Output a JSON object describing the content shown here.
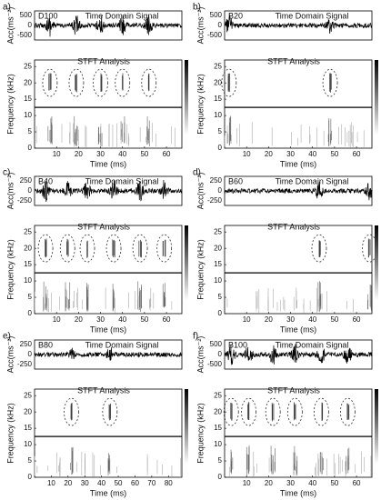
{
  "panels": [
    {
      "label": "a)",
      "signal_name": "D100",
      "signal_title": "Time Domain Signal",
      "signal_ylabel": "Acc(ms⁻²)",
      "signal_yticks": [
        "500",
        "0",
        "-500"
      ],
      "stft_title": "STFT Analysis",
      "stft_ylabel": "Frequency (kHz)",
      "stft_yticks": [
        "25",
        "20",
        "15",
        "10",
        "5",
        "0"
      ],
      "xticks": [
        "10",
        "20",
        "30",
        "40",
        "50",
        "60"
      ],
      "xlabel": "Time (ms)"
    },
    {
      "label": "b)",
      "signal_name": "B20",
      "signal_title": "Time Domain Signal",
      "signal_ylabel": "Acc(ms⁻²)",
      "signal_yticks": [
        "500",
        "0",
        "-500"
      ],
      "stft_title": "STFT Analysis",
      "stft_ylabel": "Frequency (kHz)",
      "stft_yticks": [
        "25",
        "20",
        "15",
        "10",
        "5",
        "0"
      ],
      "xticks": [
        "10",
        "20",
        "30",
        "40",
        "50",
        "60"
      ],
      "xlabel": "Time (ms)"
    },
    {
      "label": "c)",
      "signal_name": "B40",
      "signal_title": "Time Domain Signal",
      "signal_ylabel": "Acc(ms⁻²)",
      "signal_yticks": [
        "250",
        "0",
        "-250"
      ],
      "stft_title": "STFT Analysis",
      "stft_ylabel": "Frequency (kHz)",
      "stft_yticks": [
        "25",
        "20",
        "15",
        "10",
        "5",
        "0"
      ],
      "xticks": [
        "10",
        "20",
        "30",
        "40",
        "50",
        "60"
      ],
      "xlabel": "Time (ms)"
    },
    {
      "label": "d)",
      "signal_name": "B60",
      "signal_title": "Time Domain Signal",
      "signal_ylabel": "Acc(ms⁻²)",
      "signal_yticks": [
        "250",
        "0",
        "-250"
      ],
      "stft_title": "STFT Analysis",
      "stft_ylabel": "Frequency (kHz)",
      "stft_yticks": [
        "25",
        "20",
        "15",
        "10",
        "5",
        "0"
      ],
      "xticks": [
        "10",
        "20",
        "30",
        "40",
        "50",
        "60"
      ],
      "xlabel": "Time (ms)"
    },
    {
      "label": "e)",
      "signal_name": "B80",
      "signal_title": "Time Domain Signal",
      "signal_ylabel": "Acc(ms⁻²)",
      "signal_yticks": [
        "250",
        "0",
        "-250"
      ],
      "stft_title": "STFT Analysis",
      "stft_ylabel": "Frequency (kHz)",
      "stft_yticks": [
        "25",
        "20",
        "15",
        "10",
        "5",
        "0"
      ],
      "xticks": [
        "10",
        "20",
        "30",
        "40",
        "50",
        "60",
        "70",
        "80"
      ],
      "xlabel": "Time (ms)"
    },
    {
      "label": "f)",
      "signal_name": "B100",
      "signal_title": "Time Domain Signal",
      "signal_ylabel": "Acc(ms⁻²)",
      "signal_yticks": [
        "500",
        "0",
        "-500"
      ],
      "stft_title": "STFT Analysis",
      "stft_ylabel": "Frequency (kHz)",
      "stft_yticks": [
        "25",
        "20",
        "15",
        "10",
        "5",
        "0"
      ],
      "xticks": [
        "10",
        "20",
        "30",
        "40",
        "50",
        "60"
      ],
      "xlabel": "Time (ms)"
    }
  ]
}
